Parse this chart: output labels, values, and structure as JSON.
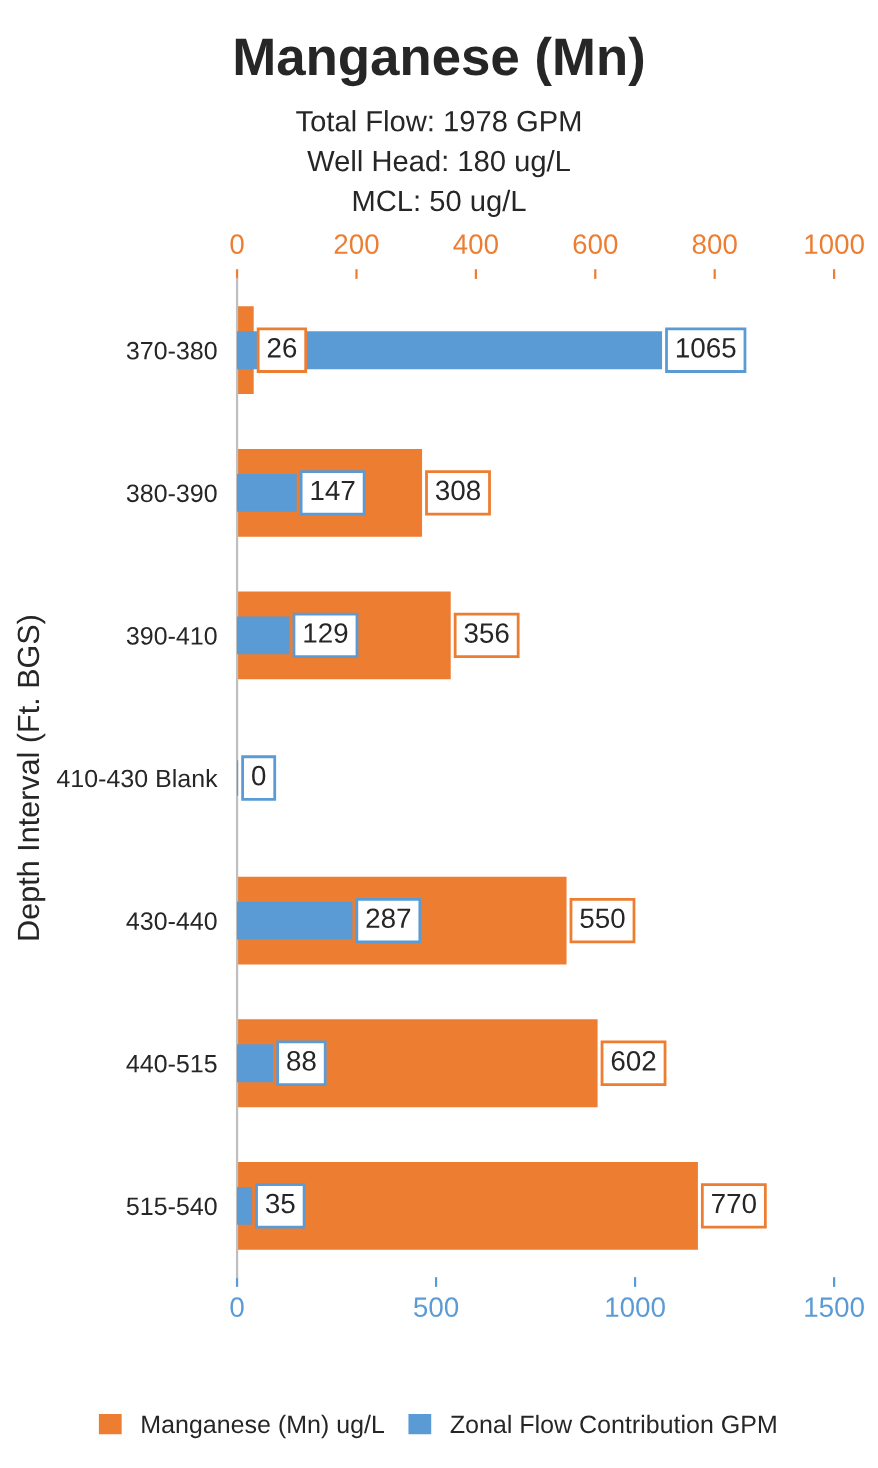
{
  "chart_data": {
    "type": "bar",
    "orientation": "horizontal",
    "title": "Manganese (Mn)",
    "subtitle": "Total Flow: 1978 GPM\nWell Head: 180 ug/L\nMCL: 50 ug/L",
    "ylabel": "Depth Interval (Ft. BGS)",
    "categories": [
      "370-380",
      "380-390",
      "390-410",
      "410-430 Blank",
      "430-440",
      "440-515",
      "515-540"
    ],
    "series": [
      {
        "name": "Manganese (Mn) ug/L",
        "color": "#ed7d31",
        "axis": "x2",
        "values": [
          26,
          308,
          356,
          null,
          550,
          602,
          770
        ]
      },
      {
        "name": "Zonal Flow Contribution GPM",
        "color": "#5b9bd5",
        "values": [
          1065,
          147,
          129,
          0,
          287,
          88,
          35
        ]
      }
    ],
    "xlim": [
      0,
      1500
    ],
    "xticks": [
      0,
      500,
      1000,
      1500
    ],
    "x2lim": [
      0,
      1000
    ],
    "x2ticks": [
      0,
      200,
      400,
      600,
      800,
      1000
    ],
    "data_labels": true,
    "legend": "bottom",
    "grid": false
  }
}
